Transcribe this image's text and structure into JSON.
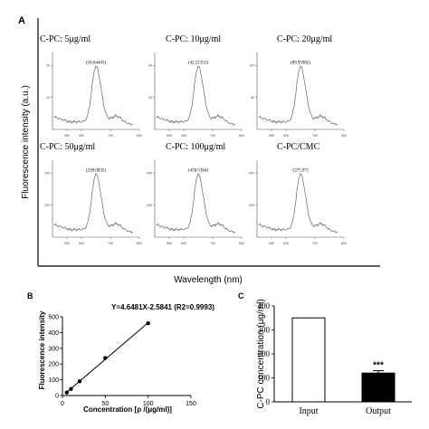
{
  "panels": {
    "a": "A",
    "b": "B",
    "c": "C"
  },
  "panel_a": {
    "ylabel": "Fluorescence intensity (a.u.)",
    "xlabel": "Wavelength  (nm)"
  },
  "chart_data": [
    {
      "type": "line",
      "panel": "A",
      "subplots": [
        {
          "title": "C-PC: 5μg/ml",
          "peak_label": "(18.64443)",
          "peak_x": 650,
          "peak_y": 18.64443,
          "xlim": [
            500,
            800
          ],
          "yticks": [
            "10",
            "20"
          ],
          "xticks": [
            "550",
            "600",
            "700",
            "800"
          ]
        },
        {
          "title": "C-PC: 10μg/ml",
          "peak_label": "(42.21353)",
          "peak_x": 650,
          "peak_y": 42.21353,
          "xlim": [
            500,
            800
          ],
          "yticks": [
            "20",
            "40"
          ],
          "xticks": [
            "550",
            "600",
            "700",
            "800"
          ]
        },
        {
          "title": "C-PC: 20μg/ml",
          "peak_label": "(89.95982)",
          "peak_x": 650,
          "peak_y": 89.95982,
          "xlim": [
            500,
            800
          ],
          "yticks": [
            "50",
            "100"
          ],
          "xticks": [
            "550",
            "600",
            "700",
            "800"
          ]
        },
        {
          "title": "C-PC: 50μg/ml",
          "peak_label": "(238.0835)",
          "peak_x": 650,
          "peak_y": 238.0835,
          "xlim": [
            500,
            800
          ],
          "yticks": [
            "100",
            "200"
          ],
          "xticks": [
            "550",
            "600",
            "700",
            "800"
          ]
        },
        {
          "title": "C-PC: 100μg/ml",
          "peak_label": "(458.5364)",
          "peak_x": 650,
          "peak_y": 458.5364,
          "xlim": [
            500,
            800
          ],
          "yticks": [
            "200",
            "400"
          ],
          "xticks": [
            "550",
            "600",
            "700",
            "800"
          ]
        },
        {
          "title": "C-PC/CMC",
          "peak_label": "(375.97)",
          "peak_x": 650,
          "peak_y": 375.97,
          "xlim": [
            500,
            800
          ],
          "yticks": [
            "200",
            "400"
          ],
          "xticks": [
            "550",
            "600",
            "700",
            "800"
          ]
        }
      ]
    },
    {
      "type": "scatter",
      "panel": "B",
      "equation": "Y=4.6481X-2.5841 (R2=0.9993)",
      "xlabel": "Concentration [ρ /(μg/ml)]",
      "ylabel": "Fluorescence intensity",
      "x": [
        5,
        10,
        20,
        50,
        100
      ],
      "y": [
        18.64,
        42.21,
        89.96,
        238.08,
        458.54
      ],
      "fit": {
        "slope": 4.6481,
        "intercept": -2.5841
      },
      "xlim": [
        0,
        150
      ],
      "ylim": [
        0,
        500
      ],
      "xticks": [
        "0",
        "50",
        "100",
        "150"
      ],
      "yticks": [
        "0",
        "100",
        "200",
        "300",
        "400",
        "500"
      ]
    },
    {
      "type": "bar",
      "panel": "C",
      "categories": [
        "Input",
        "Output"
      ],
      "values": [
        350,
        120
      ],
      "errors": [
        0,
        10
      ],
      "ylabel": "C-PC concentration (μg/ml)",
      "ylim": [
        0,
        400
      ],
      "yticks": [
        "0",
        "100",
        "200",
        "300",
        "400"
      ],
      "significance": [
        "",
        "***"
      ],
      "colors": {
        "Input": "#ffffff",
        "Output": "#000000"
      }
    }
  ]
}
